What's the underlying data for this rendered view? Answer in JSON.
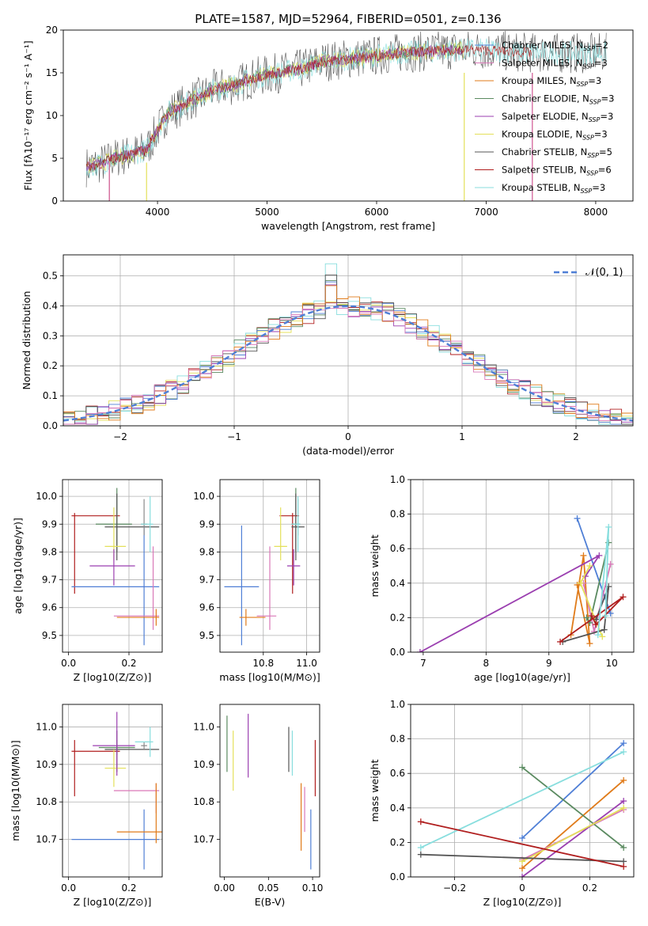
{
  "figure_title": "PLATE=1587, MJD=52964, FIBERID=0501, z=0.136",
  "palette": [
    "#4f7fd6",
    "#e07b1a",
    "#d978b8",
    "#8f8f8f",
    "#c7c72a",
    "#5a8a60",
    "#9b3fb0",
    "#e4e05a",
    "#555555",
    "#b01e1e",
    "#88dede"
  ],
  "chart_data": [
    {
      "id": "spectrum",
      "type": "line",
      "title": "PLATE=1587, MJD=52964, FIBERID=0501, z=0.136",
      "xlabel": "wavelength [Angstrom, rest frame]",
      "ylabel": "Flux [fλ10⁻¹⁷ erg cm⁻² s⁻¹ A⁻¹]",
      "xlim": [
        3140,
        8340
      ],
      "ylim": [
        0,
        20
      ],
      "xticks": [
        4000,
        5000,
        6000,
        7000,
        8000
      ],
      "yticks": [
        0,
        5,
        10,
        15,
        20
      ],
      "grid": false,
      "legend_position": "right",
      "continuum": {
        "x": [
          3350,
          3500,
          3600,
          3700,
          3800,
          3900,
          4000,
          4100,
          4200,
          4300,
          4400,
          4500,
          4700,
          4900,
          5100,
          5300,
          5500,
          5700,
          5900,
          6100,
          6300,
          6500,
          6700,
          6900,
          7100,
          7300,
          7500
        ],
        "y": [
          4.0,
          4.4,
          5.0,
          5.3,
          5.6,
          6.0,
          8.3,
          10.4,
          11.0,
          11.8,
          12.2,
          13.0,
          13.6,
          14.5,
          15.0,
          15.4,
          16.3,
          16.6,
          16.8,
          17.2,
          17.4,
          17.5,
          17.7,
          17.7,
          17.6,
          17.4,
          17.3
        ]
      },
      "series": [
        {
          "name": "Chabrier MILES, N_SSP=2",
          "color": "#4f7fd6",
          "xmax": 7420
        },
        {
          "name": "Salpeter MILES, N_SSP=3",
          "color": "#d978b8",
          "xmax": 7420
        },
        {
          "name": "Kroupa MILES, N_SSP=3",
          "color": "#e07b1a",
          "xmax": 7420
        },
        {
          "name": "Chabrier ELODIE, N_SSP=3",
          "color": "#5a8a60",
          "xmax": 6800
        },
        {
          "name": "Salpeter ELODIE, N_SSP=3",
          "color": "#9b3fb0",
          "xmax": 6800
        },
        {
          "name": "Kroupa ELODIE, N_SSP=3",
          "color": "#e4e05a",
          "xmax": 6800
        },
        {
          "name": "Chabrier STELIB, N_SSP=5",
          "color": "#555555",
          "xmax": 8100
        },
        {
          "name": "Salpeter STELIB, N_SSP=6",
          "color": "#b01e1e",
          "xmax": 7420
        },
        {
          "name": "Kroupa STELIB, N_SSP=3",
          "color": "#88dede",
          "xmax": 8100
        }
      ]
    },
    {
      "id": "residuals",
      "type": "bar",
      "xlabel": "(data-model)/error",
      "ylabel": "Normed distribution",
      "xlim": [
        -2.5,
        2.5
      ],
      "ylim": [
        0,
        0.57
      ],
      "xticks": [
        -2,
        -1,
        0,
        1,
        2
      ],
      "yticks": [
        0.0,
        0.1,
        0.2,
        0.3,
        0.4,
        0.5
      ],
      "grid": true,
      "legend": [
        {
          "name": "𝒩(0, 1)",
          "color": "#4f7fd6",
          "dashed": true
        }
      ],
      "legend_position": "top-right",
      "bin_width": 0.1,
      "normal_curve": {
        "mean": 0,
        "sigma": 1
      }
    },
    {
      "id": "age_vs_z",
      "type": "scatter",
      "xlabel": "Z [log10(Z/Z⊙)]",
      "ylabel": "age  [log10(age/yr)]",
      "xlim": [
        -0.02,
        0.31
      ],
      "ylim": [
        9.44,
        10.06
      ],
      "xticks": [
        0.0,
        0.2
      ],
      "yticks": [
        9.5,
        9.6,
        9.7,
        9.8,
        9.9,
        10.0
      ],
      "grid": true,
      "points": [
        {
          "x": 0.02,
          "y": 9.93,
          "xerr": [
            0.01,
            0.15
          ],
          "yerr": [
            0.28,
            0.01
          ],
          "color": "#b01e1e"
        },
        {
          "x": 0.16,
          "y": 9.9,
          "xerr": [
            0.07,
            0.05
          ],
          "yerr": [
            0.1,
            0.13
          ],
          "color": "#5a8a60"
        },
        {
          "x": 0.16,
          "y": 9.89,
          "xerr": [
            0.04,
            0.14
          ],
          "yerr": [
            0.12,
            0.12
          ],
          "color": "#555555"
        },
        {
          "x": 0.15,
          "y": 9.82,
          "xerr": [
            0.03,
            0.04
          ],
          "yerr": [
            0.05,
            0.14
          ],
          "color": "#e4e05a"
        },
        {
          "x": 0.15,
          "y": 9.75,
          "xerr": [
            0.08,
            0.07
          ],
          "yerr": [
            0.07,
            0.06
          ],
          "color": "#9b3fb0"
        },
        {
          "x": 0.25,
          "y": 9.675,
          "xerr": [
            0.24,
            0.05
          ],
          "yerr": [
            0.21,
            0.22
          ],
          "color": "#4f7fd6"
        },
        {
          "x": 0.28,
          "y": 9.57,
          "xerr": [
            0.13,
            0.02
          ],
          "yerr": [
            0.05,
            0.25
          ],
          "color": "#d978b8"
        },
        {
          "x": 0.29,
          "y": 9.565,
          "xerr": [
            0.13,
            0.01
          ],
          "yerr": [
            0.03,
            0.03
          ],
          "color": "#e07b1a"
        },
        {
          "x": 0.25,
          "y": 9.9,
          "xerr": [
            0.01,
            0.01
          ],
          "yerr": [
            0.04,
            0.09
          ],
          "color": "#888888"
        },
        {
          "x": 0.27,
          "y": 9.9,
          "xerr": [
            0.03,
            0.01
          ],
          "yerr": [
            0.1,
            0.1
          ],
          "color": "#88dede"
        }
      ]
    },
    {
      "id": "age_vs_mass",
      "type": "scatter",
      "xlabel": "mass [log10(M/M⊙)]",
      "ylabel": "",
      "xlim": [
        10.6,
        11.06
      ],
      "ylim": [
        9.44,
        10.06
      ],
      "xticks": [
        10.8,
        11.0
      ],
      "yticks": [
        9.5,
        9.6,
        9.7,
        9.8,
        9.9,
        10.0
      ],
      "grid": true,
      "points": [
        {
          "x": 10.935,
          "y": 9.93,
          "xerr": [
            0.06,
            0.03
          ],
          "yerr": [
            0.28,
            0.01
          ],
          "color": "#b01e1e"
        },
        {
          "x": 10.95,
          "y": 9.9,
          "xerr": [
            0.02,
            0.02
          ],
          "yerr": [
            0.1,
            0.13
          ],
          "color": "#5a8a60"
        },
        {
          "x": 10.95,
          "y": 9.89,
          "xerr": [
            0.02,
            0.04
          ],
          "yerr": [
            0.12,
            0.12
          ],
          "color": "#555555"
        },
        {
          "x": 10.88,
          "y": 9.82,
          "xerr": [
            0.03,
            0.03
          ],
          "yerr": [
            0.05,
            0.14
          ],
          "color": "#e4e05a"
        },
        {
          "x": 10.94,
          "y": 9.75,
          "xerr": [
            0.03,
            0.03
          ],
          "yerr": [
            0.07,
            0.06
          ],
          "color": "#9b3fb0"
        },
        {
          "x": 10.7,
          "y": 9.675,
          "xerr": [
            0.08,
            0.08
          ],
          "yerr": [
            0.21,
            0.22
          ],
          "color": "#4f7fd6"
        },
        {
          "x": 10.83,
          "y": 9.57,
          "xerr": [
            0.06,
            0.03
          ],
          "yerr": [
            0.05,
            0.25
          ],
          "color": "#d978b8"
        },
        {
          "x": 10.72,
          "y": 9.565,
          "xerr": [
            0.03,
            0.09
          ],
          "yerr": [
            0.03,
            0.03
          ],
          "color": "#e07b1a"
        },
        {
          "x": 10.96,
          "y": 9.9,
          "xerr": [
            0.01,
            0.01
          ],
          "yerr": [
            0.04,
            0.09
          ],
          "color": "#888888"
        },
        {
          "x": 10.96,
          "y": 9.9,
          "xerr": [
            0.03,
            0.01
          ],
          "yerr": [
            0.1,
            0.1
          ],
          "color": "#88dede"
        }
      ]
    },
    {
      "id": "weight_vs_age",
      "type": "line",
      "xlabel": "age  [log10(age/yr)]",
      "ylabel": "mass weight",
      "xlim": [
        6.8,
        10.35
      ],
      "ylim": [
        0,
        1.0
      ],
      "xticks": [
        7,
        8,
        9,
        10
      ],
      "yticks": [
        0.0,
        0.2,
        0.4,
        0.6,
        0.8,
        1.0
      ],
      "grid": true,
      "series": [
        {
          "color": "#4f7fd6",
          "x": [
            9.45,
            9.98
          ],
          "y": [
            0.775,
            0.225
          ]
        },
        {
          "color": "#e07b1a",
          "x": [
            9.35,
            9.55,
            9.65,
            9.45
          ],
          "y": [
            0.1,
            0.56,
            0.05,
            0.39
          ]
        },
        {
          "color": "#d978b8",
          "x": [
            9.55,
            9.72,
            9.98
          ],
          "y": [
            0.4,
            0.12,
            0.51
          ]
        },
        {
          "color": "#5a8a60",
          "x": [
            9.95,
            9.65,
            9.6
          ],
          "y": [
            0.635,
            0.17,
            0.2
          ]
        },
        {
          "color": "#9b3fb0",
          "x": [
            6.95,
            9.8,
            9.58
          ],
          "y": [
            0.0,
            0.56,
            0.44
          ]
        },
        {
          "color": "#e4e05a",
          "x": [
            9.65,
            9.5,
            9.85
          ],
          "y": [
            0.5,
            0.4,
            0.09
          ]
        },
        {
          "color": "#555555",
          "x": [
            9.22,
            9.88,
            9.95,
            9.75
          ],
          "y": [
            0.06,
            0.13,
            0.38,
            0.19
          ]
        },
        {
          "color": "#b01e1e",
          "x": [
            9.18,
            10.18,
            9.75,
            9.68
          ],
          "y": [
            0.06,
            0.32,
            0.16,
            0.21
          ]
        },
        {
          "color": "#88dede",
          "x": [
            9.78,
            9.95,
            9.9
          ],
          "y": [
            0.1,
            0.725,
            0.21
          ]
        }
      ]
    },
    {
      "id": "mass_vs_z",
      "type": "scatter",
      "xlabel": "Z [log10(Z/Z⊙)]",
      "ylabel": "mass [log10(M/M⊙)]",
      "xlim": [
        -0.02,
        0.31
      ],
      "ylim": [
        10.6,
        11.06
      ],
      "xticks": [
        0.0,
        0.2
      ],
      "yticks": [
        10.7,
        10.8,
        10.9,
        11.0
      ],
      "grid": true,
      "points": [
        {
          "x": 0.02,
          "y": 10.935,
          "xerr": [
            0.01,
            0.15
          ],
          "yerr": [
            0.12,
            0.03
          ],
          "color": "#b01e1e"
        },
        {
          "x": 0.16,
          "y": 10.945,
          "xerr": [
            0.06,
            0.06
          ],
          "yerr": [
            0.02,
            0.02
          ],
          "color": "#5a8a60"
        },
        {
          "x": 0.16,
          "y": 10.94,
          "xerr": [
            0.04,
            0.14
          ],
          "yerr": [
            0.06,
            0.05
          ],
          "color": "#555555"
        },
        {
          "x": 0.15,
          "y": 10.89,
          "xerr": [
            0.03,
            0.04
          ],
          "yerr": [
            0.05,
            0.05
          ],
          "color": "#e4e05a"
        },
        {
          "x": 0.16,
          "y": 10.95,
          "xerr": [
            0.08,
            0.06
          ],
          "yerr": [
            0.08,
            0.09
          ],
          "color": "#9b3fb0"
        },
        {
          "x": 0.25,
          "y": 10.7,
          "xerr": [
            0.24,
            0.05
          ],
          "yerr": [
            0.08,
            0.08
          ],
          "color": "#4f7fd6"
        },
        {
          "x": 0.29,
          "y": 10.83,
          "xerr": [
            0.14,
            0.01
          ],
          "yerr": [
            0.06,
            0.02
          ],
          "color": "#d978b8"
        },
        {
          "x": 0.29,
          "y": 10.72,
          "xerr": [
            0.13,
            0.02
          ],
          "yerr": [
            0.03,
            0.13
          ],
          "color": "#e07b1a"
        },
        {
          "x": 0.25,
          "y": 10.95,
          "xerr": [
            0.01,
            0.01
          ],
          "yerr": [
            0.01,
            0.01
          ],
          "color": "#888888"
        },
        {
          "x": 0.27,
          "y": 10.96,
          "xerr": [
            0.05,
            0.01
          ],
          "yerr": [
            0.04,
            0.04
          ],
          "color": "#88dede"
        }
      ]
    },
    {
      "id": "mass_vs_ebv",
      "type": "scatter",
      "xlabel": "E(B-V)",
      "ylabel": "",
      "xlim": [
        -0.005,
        0.108
      ],
      "ylim": [
        10.6,
        11.06
      ],
      "xticks": [
        0.0,
        0.05,
        0.1
      ],
      "yticks": [
        10.7,
        10.8,
        10.9,
        11.0
      ],
      "grid": false,
      "points": [
        {
          "x": 0.003,
          "y": 10.955,
          "xerr": [
            0,
            0
          ],
          "yerr": [
            0.075,
            0.075
          ],
          "color": "#5a8a60"
        },
        {
          "x": 0.01,
          "y": 10.91,
          "xerr": [
            0,
            0
          ],
          "yerr": [
            0.08,
            0.08
          ],
          "color": "#e4e05a"
        },
        {
          "x": 0.027,
          "y": 10.95,
          "xerr": [
            0,
            0
          ],
          "yerr": [
            0.085,
            0.085
          ],
          "color": "#9b3fb0"
        },
        {
          "x": 0.073,
          "y": 10.94,
          "xerr": [
            0,
            0
          ],
          "yerr": [
            0.06,
            0.06
          ],
          "color": "#555555"
        },
        {
          "x": 0.077,
          "y": 10.93,
          "xerr": [
            0,
            0
          ],
          "yerr": [
            0.06,
            0.06
          ],
          "color": "#88dede"
        },
        {
          "x": 0.087,
          "y": 10.76,
          "xerr": [
            0,
            0
          ],
          "yerr": [
            0.09,
            0.09
          ],
          "color": "#e07b1a"
        },
        {
          "x": 0.091,
          "y": 10.78,
          "xerr": [
            0,
            0
          ],
          "yerr": [
            0.06,
            0.06
          ],
          "color": "#d978b8"
        },
        {
          "x": 0.098,
          "y": 10.7,
          "xerr": [
            0,
            0
          ],
          "yerr": [
            0.08,
            0.08
          ],
          "color": "#4f7fd6"
        },
        {
          "x": 0.103,
          "y": 10.89,
          "xerr": [
            0,
            0
          ],
          "yerr": [
            0.075,
            0.075
          ],
          "color": "#b01e1e"
        }
      ]
    },
    {
      "id": "weight_vs_z",
      "type": "line",
      "xlabel": "Z [log10(Z/Z⊙)]",
      "ylabel": "mass weight",
      "xlim": [
        -0.33,
        0.33
      ],
      "ylim": [
        0,
        1.0
      ],
      "xticks": [
        -0.2,
        0.0,
        0.2
      ],
      "yticks": [
        0.0,
        0.2,
        0.4,
        0.6,
        0.8,
        1.0
      ],
      "grid": true,
      "series": [
        {
          "color": "#4f7fd6",
          "x": [
            0.0,
            0.3
          ],
          "y": [
            0.225,
            0.775
          ]
        },
        {
          "color": "#e07b1a",
          "x": [
            0.0,
            0.3
          ],
          "y": [
            0.05,
            0.56
          ]
        },
        {
          "color": "#d978b8",
          "x": [
            0.0,
            0.3
          ],
          "y": [
            0.1,
            0.39
          ]
        },
        {
          "color": "#5a8a60",
          "x": [
            0.0,
            0.3
          ],
          "y": [
            0.635,
            0.17
          ]
        },
        {
          "color": "#9b3fb0",
          "x": [
            0.0,
            0.3
          ],
          "y": [
            0.0,
            0.44
          ]
        },
        {
          "color": "#e4e05a",
          "x": [
            0.0,
            0.3
          ],
          "y": [
            0.09,
            0.4
          ]
        },
        {
          "color": "#88dede",
          "x": [
            -0.3,
            0.3
          ],
          "y": [
            0.17,
            0.725
          ]
        },
        {
          "color": "#555555",
          "x": [
            -0.3,
            0.3
          ],
          "y": [
            0.13,
            0.09
          ]
        },
        {
          "color": "#b01e1e",
          "x": [
            -0.3,
            0.3
          ],
          "y": [
            0.32,
            0.06
          ]
        }
      ]
    }
  ]
}
